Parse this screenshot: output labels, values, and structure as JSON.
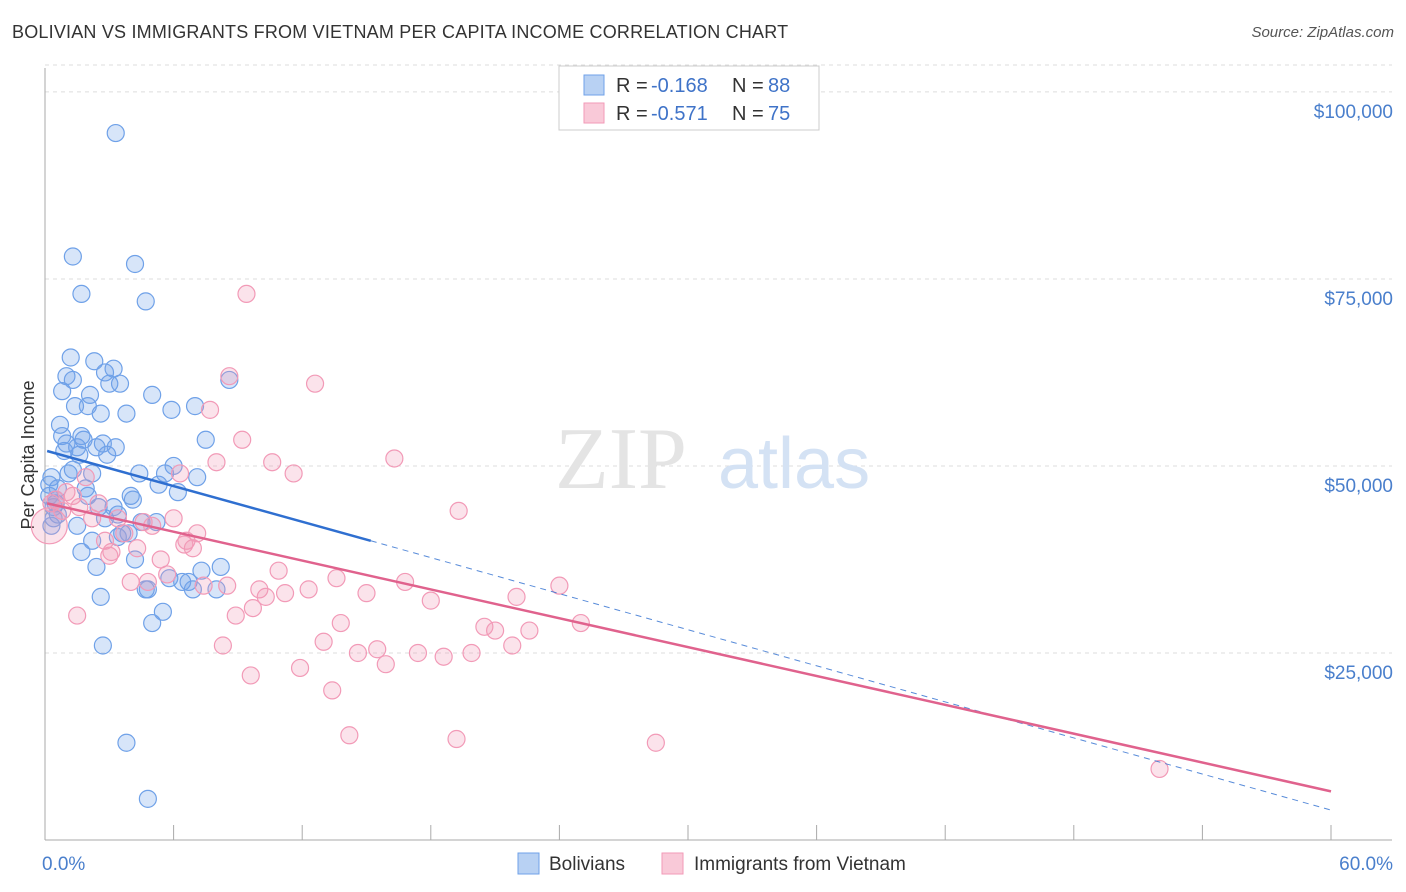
{
  "title": "BOLIVIAN VS IMMIGRANTS FROM VIETNAM PER CAPITA INCOME CORRELATION CHART",
  "source": "Source: ZipAtlas.com",
  "watermark": {
    "zip": "ZIP",
    "atlas": "atlas"
  },
  "chart_data": {
    "type": "scatter",
    "title": "BOLIVIAN VS IMMIGRANTS FROM VIETNAM PER CAPITA INCOME CORRELATION CHART",
    "xlabel": "",
    "ylabel": "Per Capita Income",
    "xlim": [
      0,
      60
    ],
    "ylim": [
      0,
      104000
    ],
    "x_tick_labels": {
      "min": "0.0%",
      "max": "60.0%"
    },
    "y_ticks": [
      {
        "value": 25000,
        "label": "$25,000"
      },
      {
        "value": 50000,
        "label": "$50,000"
      },
      {
        "value": 75000,
        "label": "$75,000"
      },
      {
        "value": 100000,
        "label": "$100,000"
      }
    ],
    "grid": "horizontal dashed",
    "legend_position": "top-center",
    "series": [
      {
        "name": "Bolivians",
        "color": "#6fa1e8",
        "trend_color": "#2f6fd0",
        "r_label": "R =",
        "r_value": "-0.168",
        "n_label": "N =",
        "n_value": "88",
        "trend": {
          "x0": 0.1,
          "y0": 52000,
          "x1": 15.2,
          "y1": 40000,
          "dashed_to_x": 60,
          "dashed_to_y": 4000
        },
        "points": [
          [
            0.2,
            46000
          ],
          [
            0.3,
            48500
          ],
          [
            0.4,
            44500
          ],
          [
            0.5,
            45000
          ],
          [
            0.6,
            47000
          ],
          [
            0.4,
            43000
          ],
          [
            0.7,
            55500
          ],
          [
            0.8,
            54000
          ],
          [
            0.9,
            52000
          ],
          [
            1.0,
            53000
          ],
          [
            1.1,
            49000
          ],
          [
            1.2,
            64500
          ],
          [
            1.3,
            61500
          ],
          [
            1.0,
            62000
          ],
          [
            1.4,
            58000
          ],
          [
            1.5,
            52500
          ],
          [
            1.6,
            51500
          ],
          [
            1.7,
            54000
          ],
          [
            1.9,
            47000
          ],
          [
            2.0,
            58000
          ],
          [
            2.1,
            59500
          ],
          [
            2.2,
            49000
          ],
          [
            2.3,
            64000
          ],
          [
            2.4,
            52500
          ],
          [
            2.6,
            57000
          ],
          [
            2.7,
            53000
          ],
          [
            2.8,
            62500
          ],
          [
            2.9,
            51500
          ],
          [
            3.0,
            61000
          ],
          [
            3.2,
            63000
          ],
          [
            3.3,
            52500
          ],
          [
            3.5,
            61000
          ],
          [
            1.3,
            49500
          ],
          [
            1.8,
            53500
          ],
          [
            2.0,
            46000
          ],
          [
            2.5,
            44500
          ],
          [
            2.8,
            43000
          ],
          [
            3.4,
            40500
          ],
          [
            3.6,
            41000
          ],
          [
            3.8,
            57000
          ],
          [
            4.0,
            46000
          ],
          [
            4.2,
            37500
          ],
          [
            4.5,
            42500
          ],
          [
            4.8,
            33500
          ],
          [
            5.0,
            29000
          ],
          [
            5.2,
            42500
          ],
          [
            5.5,
            30500
          ],
          [
            5.9,
            57500
          ],
          [
            6.2,
            46500
          ],
          [
            6.7,
            34500
          ],
          [
            6.9,
            33500
          ],
          [
            7.1,
            48500
          ],
          [
            7.5,
            53500
          ],
          [
            8.2,
            36500
          ],
          [
            8.6,
            61500
          ],
          [
            0.8,
            60000
          ],
          [
            1.5,
            42000
          ],
          [
            1.7,
            38500
          ],
          [
            2.2,
            40000
          ],
          [
            2.4,
            36500
          ],
          [
            2.6,
            32500
          ],
          [
            2.7,
            26000
          ],
          [
            3.2,
            44500
          ],
          [
            3.4,
            43500
          ],
          [
            3.9,
            41000
          ],
          [
            4.1,
            45500
          ],
          [
            4.4,
            49000
          ],
          [
            4.7,
            33500
          ],
          [
            5.3,
            47500
          ],
          [
            5.6,
            49000
          ],
          [
            5.8,
            35000
          ],
          [
            6.0,
            50000
          ],
          [
            6.4,
            34500
          ],
          [
            7.0,
            58000
          ],
          [
            7.3,
            36000
          ],
          [
            8.0,
            33500
          ],
          [
            1.3,
            78000
          ],
          [
            1.7,
            73000
          ],
          [
            3.3,
            94500
          ],
          [
            4.2,
            77000
          ],
          [
            4.7,
            72000
          ],
          [
            5.0,
            59500
          ],
          [
            3.8,
            13000
          ],
          [
            4.8,
            5500
          ],
          [
            0.2,
            47500
          ],
          [
            0.5,
            45500
          ],
          [
            0.6,
            43500
          ],
          [
            0.3,
            42000
          ]
        ]
      },
      {
        "name": "Immigrants from Vietnam",
        "color": "#f29ab7",
        "trend_color": "#e0628d",
        "r_label": "R =",
        "r_value": "-0.571",
        "n_label": "N =",
        "n_value": "75",
        "trend": {
          "x0": 0.1,
          "y0": 45000,
          "x1": 60,
          "y1": 6500
        },
        "points": [
          [
            0.2,
            42000
          ],
          [
            0.5,
            45500
          ],
          [
            0.8,
            44000
          ],
          [
            1.0,
            46500
          ],
          [
            1.3,
            46000
          ],
          [
            1.6,
            44500
          ],
          [
            1.9,
            48500
          ],
          [
            2.2,
            43000
          ],
          [
            2.5,
            45000
          ],
          [
            2.8,
            40000
          ],
          [
            3.1,
            38500
          ],
          [
            3.4,
            43000
          ],
          [
            3.7,
            41000
          ],
          [
            4.0,
            34500
          ],
          [
            4.3,
            39000
          ],
          [
            4.6,
            42500
          ],
          [
            5.0,
            42000
          ],
          [
            5.4,
            37500
          ],
          [
            5.7,
            35500
          ],
          [
            6.0,
            43000
          ],
          [
            6.3,
            49000
          ],
          [
            6.6,
            40000
          ],
          [
            6.9,
            39000
          ],
          [
            7.1,
            41000
          ],
          [
            7.4,
            34000
          ],
          [
            7.7,
            57500
          ],
          [
            8.0,
            50500
          ],
          [
            8.3,
            26000
          ],
          [
            8.6,
            62000
          ],
          [
            8.9,
            30000
          ],
          [
            9.2,
            53500
          ],
          [
            9.4,
            73000
          ],
          [
            9.7,
            31000
          ],
          [
            10.0,
            33500
          ],
          [
            10.3,
            32500
          ],
          [
            10.6,
            50500
          ],
          [
            10.9,
            36000
          ],
          [
            11.2,
            33000
          ],
          [
            11.6,
            49000
          ],
          [
            11.9,
            23000
          ],
          [
            12.3,
            33500
          ],
          [
            12.6,
            61000
          ],
          [
            13.0,
            26500
          ],
          [
            13.4,
            20000
          ],
          [
            13.8,
            29000
          ],
          [
            14.2,
            14000
          ],
          [
            14.6,
            25000
          ],
          [
            15.0,
            33000
          ],
          [
            15.5,
            25500
          ],
          [
            15.9,
            23500
          ],
          [
            16.3,
            51000
          ],
          [
            16.8,
            34500
          ],
          [
            17.4,
            25000
          ],
          [
            18.0,
            32000
          ],
          [
            18.6,
            24500
          ],
          [
            19.3,
            44000
          ],
          [
            19.9,
            25000
          ],
          [
            20.5,
            28500
          ],
          [
            21.0,
            28000
          ],
          [
            22.0,
            32500
          ],
          [
            22.6,
            28000
          ],
          [
            24.0,
            34000
          ],
          [
            25.0,
            29000
          ],
          [
            28.5,
            13000
          ],
          [
            1.5,
            30000
          ],
          [
            3.0,
            38000
          ],
          [
            4.8,
            34500
          ],
          [
            6.5,
            39500
          ],
          [
            8.5,
            34000
          ],
          [
            13.6,
            35000
          ],
          [
            19.2,
            13500
          ],
          [
            21.8,
            26000
          ],
          [
            9.6,
            22000
          ],
          [
            52.0,
            9500
          ],
          [
            0.3,
            45000
          ]
        ]
      }
    ]
  }
}
